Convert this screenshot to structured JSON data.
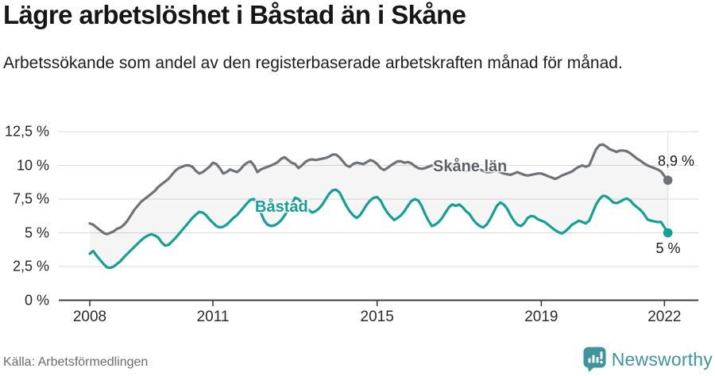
{
  "header": {
    "title": "Lägre arbetslöshet i Båstad än i Skåne",
    "subtitle": "Arbetssökande som andel av den registerbaserade arbetskraften månad för månad."
  },
  "footer": {
    "source": "Källa: Arbetsförmedlingen",
    "logo_text": "Newsworthy"
  },
  "colors": {
    "skane_line": "#6f7277",
    "bastad_line": "#14a094",
    "band_fill": "rgba(120,120,120,0.07)",
    "gridline": "#d9d9d9",
    "axis": "#3d3d3d",
    "logo_teal": "#3e959c"
  },
  "chart_data": {
    "type": "line",
    "x_unit": "month",
    "x_start": "2008-01",
    "x_end": "2022-02",
    "grid": true,
    "ylim": [
      0,
      12.5
    ],
    "yticks": [
      0,
      2.5,
      5,
      7.5,
      10,
      12.5
    ],
    "ytick_labels": [
      "0 %",
      "2,5 %",
      "5 %",
      "7,5 %",
      "10 %",
      "12,5 %"
    ],
    "xticks": [
      2008,
      2011,
      2015,
      2019,
      2022
    ],
    "xtick_labels": [
      "2008",
      "2011",
      "2015",
      "2019",
      "2022"
    ],
    "series": [
      {
        "name": "Skåne län",
        "color": "#6f7277",
        "end_label": "8,9 %",
        "end_value": 8.9,
        "values": [
          5.7,
          5.6,
          5.4,
          5.2,
          5.0,
          4.9,
          5.0,
          5.1,
          5.3,
          5.4,
          5.6,
          5.9,
          6.3,
          6.7,
          7.0,
          7.3,
          7.5,
          7.7,
          7.9,
          8.1,
          8.4,
          8.6,
          8.8,
          9.0,
          9.3,
          9.6,
          9.8,
          9.9,
          10.0,
          10.0,
          9.9,
          9.6,
          9.4,
          9.5,
          9.7,
          9.9,
          10.2,
          10.1,
          9.8,
          9.4,
          9.5,
          9.7,
          9.6,
          9.5,
          9.7,
          10.0,
          10.2,
          10.3,
          10.0,
          9.5,
          9.7,
          9.8,
          9.9,
          10.0,
          10.1,
          10.25,
          10.5,
          10.6,
          10.4,
          10.2,
          10.1,
          9.8,
          10.0,
          10.25,
          10.4,
          10.45,
          10.4,
          10.45,
          10.5,
          10.55,
          10.65,
          10.8,
          10.8,
          10.6,
          10.3,
          10.0,
          9.9,
          10.1,
          10.2,
          10.15,
          10.1,
          10.25,
          10.4,
          10.3,
          10.1,
          9.8,
          9.65,
          9.8,
          10.0,
          10.15,
          10.3,
          10.3,
          10.2,
          10.25,
          10.15,
          9.95,
          9.8,
          9.75,
          9.8,
          9.9,
          10.0,
          10.05,
          10.0,
          9.9,
          9.85,
          9.9,
          9.95,
          9.9,
          9.8,
          9.7,
          9.6,
          9.6,
          9.7,
          9.75,
          9.7,
          9.6,
          9.5,
          9.5,
          9.55,
          9.6,
          9.5,
          9.4,
          9.35,
          9.3,
          9.4,
          9.5,
          9.4,
          9.3,
          9.25,
          9.3,
          9.35,
          9.4,
          9.4,
          9.3,
          9.2,
          9.1,
          9.0,
          9.1,
          9.25,
          9.35,
          9.45,
          9.55,
          9.75,
          9.9,
          10.0,
          9.9,
          10.0,
          10.6,
          11.2,
          11.5,
          11.55,
          11.4,
          11.2,
          11.1,
          11.0,
          11.1,
          11.1,
          11.05,
          10.9,
          10.7,
          10.5,
          10.35,
          10.15,
          10.0,
          9.9,
          9.8,
          9.7,
          9.55,
          9.2,
          8.9
        ]
      },
      {
        "name": "Båstad",
        "color": "#14a094",
        "end_label": "5 %",
        "end_value": 5.0,
        "values": [
          3.45,
          3.65,
          3.3,
          3.0,
          2.7,
          2.45,
          2.4,
          2.5,
          2.7,
          2.9,
          3.2,
          3.45,
          3.7,
          3.95,
          4.2,
          4.45,
          4.65,
          4.8,
          4.9,
          4.8,
          4.65,
          4.3,
          4.05,
          4.1,
          4.35,
          4.6,
          4.9,
          5.2,
          5.5,
          5.8,
          6.1,
          6.35,
          6.55,
          6.5,
          6.3,
          6.0,
          5.75,
          5.5,
          5.4,
          5.45,
          5.6,
          5.85,
          6.1,
          6.3,
          6.6,
          6.9,
          7.2,
          7.45,
          7.5,
          7.1,
          6.5,
          5.9,
          5.6,
          5.5,
          5.55,
          5.7,
          5.95,
          6.3,
          6.7,
          7.1,
          7.6,
          7.5,
          7.2,
          6.9,
          6.7,
          6.5,
          6.6,
          6.8,
          7.1,
          7.5,
          7.9,
          8.15,
          8.2,
          8.0,
          7.5,
          7.0,
          6.6,
          6.3,
          6.1,
          6.3,
          6.7,
          7.1,
          7.4,
          7.6,
          7.65,
          7.4,
          6.9,
          6.5,
          6.2,
          5.95,
          6.1,
          6.3,
          6.6,
          7.0,
          7.35,
          7.5,
          7.4,
          7.0,
          6.4,
          5.9,
          5.5,
          5.6,
          5.8,
          6.1,
          6.5,
          6.9,
          7.1,
          7.0,
          7.1,
          6.9,
          6.6,
          6.4,
          6.0,
          5.7,
          5.5,
          5.4,
          5.6,
          6.0,
          6.5,
          7.0,
          7.25,
          7.1,
          6.8,
          6.3,
          5.9,
          5.6,
          5.5,
          5.7,
          6.1,
          6.25,
          6.2,
          6.0,
          5.9,
          5.8,
          5.6,
          5.4,
          5.2,
          5.05,
          4.95,
          5.1,
          5.35,
          5.6,
          5.75,
          5.9,
          5.8,
          5.7,
          5.9,
          6.5,
          7.1,
          7.5,
          7.75,
          7.7,
          7.5,
          7.25,
          7.2,
          7.3,
          7.45,
          7.55,
          7.4,
          7.1,
          6.9,
          6.7,
          6.4,
          6.0,
          5.9,
          5.85,
          5.8,
          5.8,
          5.4,
          5.0
        ]
      }
    ]
  }
}
